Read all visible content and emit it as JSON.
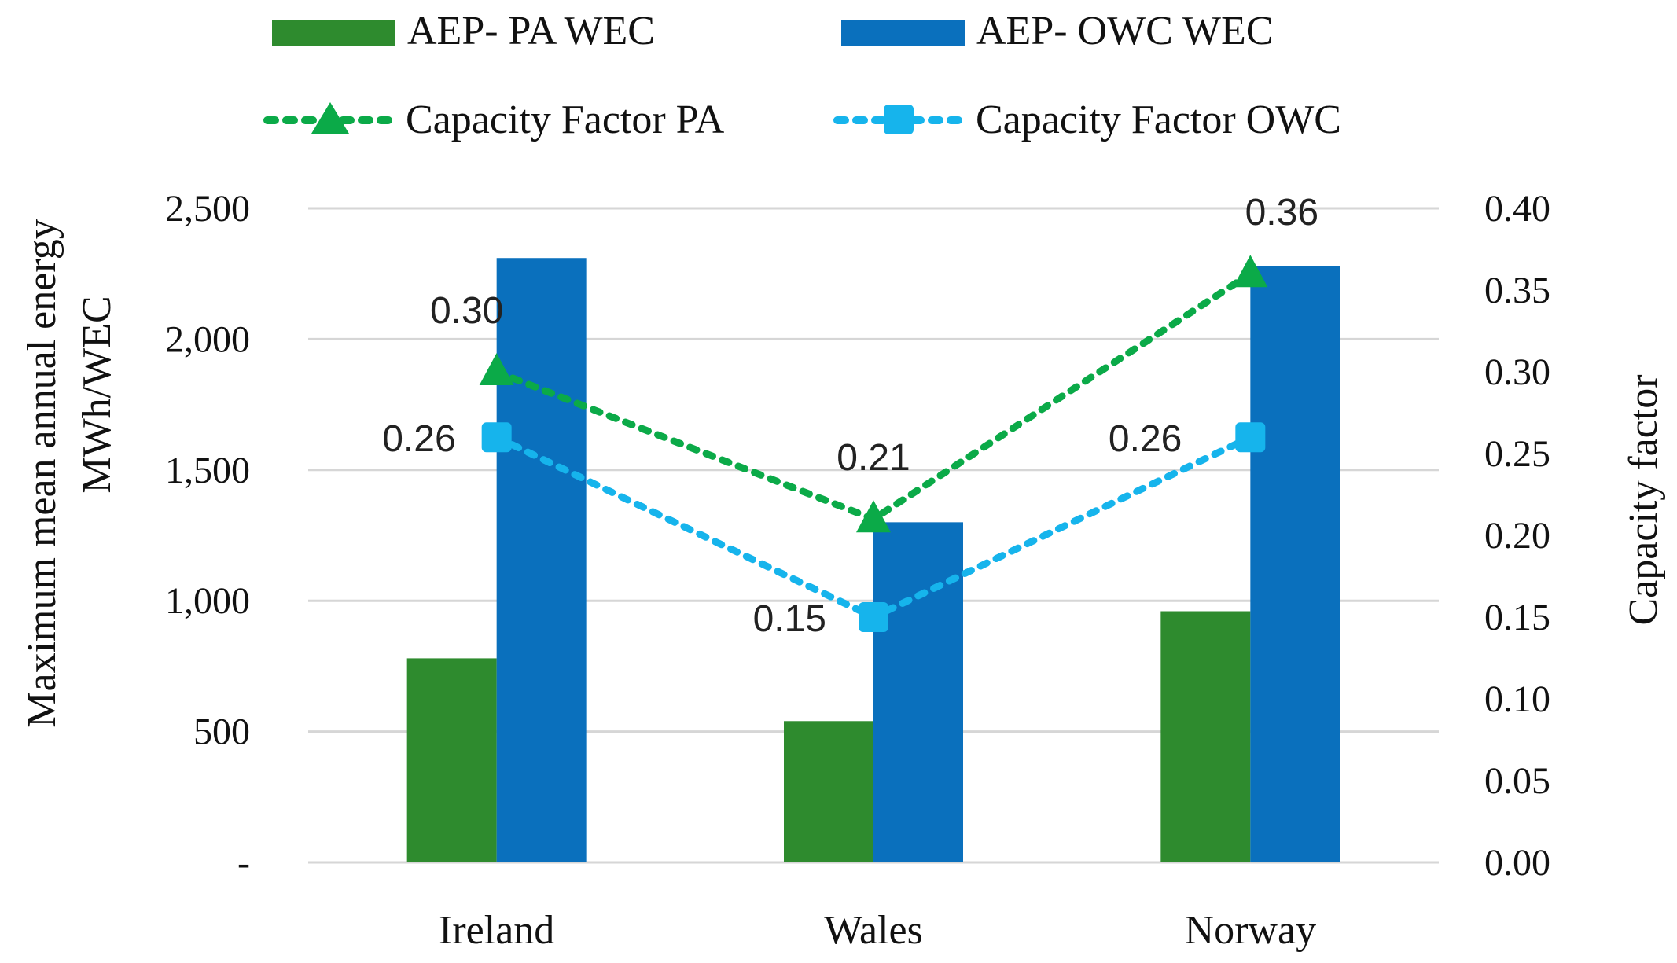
{
  "chart_data": {
    "type": "bar",
    "categories": [
      "Ireland",
      "Wales",
      "Norway"
    ],
    "bar_series": [
      {
        "name": "AEP- PA WEC",
        "values": [
          780,
          540,
          960
        ],
        "color": "#2E8B2E"
      },
      {
        "name": "AEP- OWC WEC",
        "values": [
          2310,
          1300,
          2280
        ],
        "color": "#0A70BD"
      }
    ],
    "line_series": [
      {
        "name": "Capacity Factor PA",
        "values": [
          0.3,
          0.21,
          0.36
        ],
        "labels": [
          "0.30",
          "0.21",
          "0.36"
        ],
        "color": "#0BAA48",
        "marker": "triangle"
      },
      {
        "name": "Capacity Factor OWC",
        "values": [
          0.26,
          0.15,
          0.26
        ],
        "labels": [
          "0.26",
          "0.15",
          "0.26"
        ],
        "color": "#16B4EC",
        "marker": "square"
      }
    ],
    "ylabel": "Maximum mean annual  energy MWh/WEC",
    "ylabel_lines": [
      "Maximum mean annual  energy",
      "MWh/WEC"
    ],
    "y2label": "Capacity  factor",
    "ylim": [
      0,
      2500
    ],
    "y2lim": [
      0,
      0.4
    ],
    "yticks": [
      0,
      500,
      1000,
      1500,
      2000,
      2500
    ],
    "ytick_labels": [
      "-",
      "500",
      "1,000",
      "1,500",
      "2,000",
      "2,500"
    ],
    "y2ticks": [
      0,
      0.05,
      0.1,
      0.15,
      0.2,
      0.25,
      0.3,
      0.35,
      0.4
    ],
    "y2tick_labels": [
      "0.00",
      "0.05",
      "0.10",
      "0.15",
      "0.20",
      "0.25",
      "0.30",
      "0.35",
      "0.40"
    ],
    "grid": true,
    "legend_position": "top"
  }
}
